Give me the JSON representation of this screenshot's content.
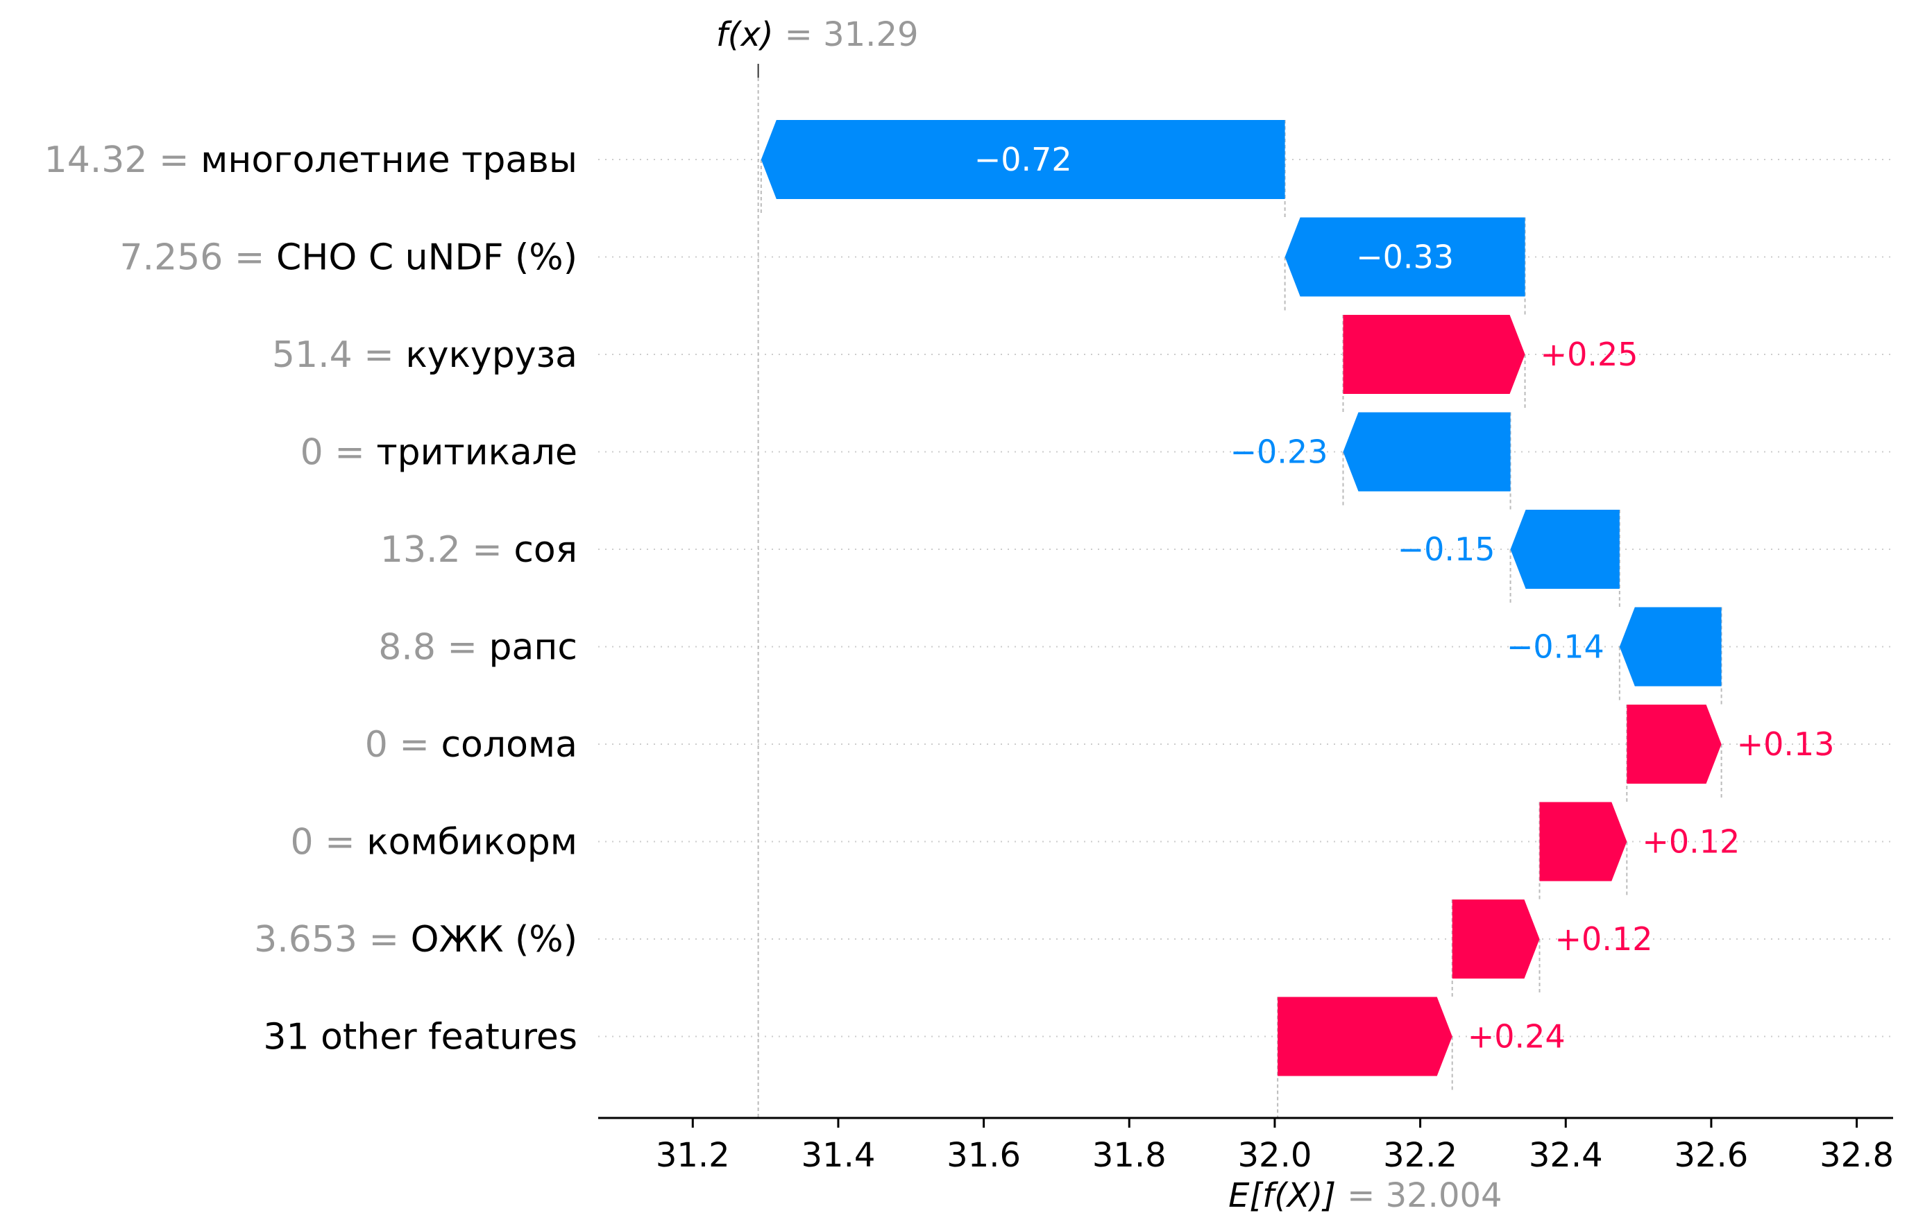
{
  "chart_data": {
    "type": "waterfall",
    "fx_label": "f(x)",
    "fx_value": "= 31.29",
    "base_label": "E[f(X)]",
    "base_value": "= 32.004",
    "base": 32.004,
    "final": 31.29,
    "xlim": [
      31.07,
      32.85
    ],
    "x_ticks": [
      31.2,
      31.4,
      31.6,
      31.8,
      32.0,
      32.2,
      32.4,
      32.6,
      32.8
    ],
    "x_tick_labels": [
      "31.2",
      "31.4",
      "31.6",
      "31.8",
      "32.0",
      "32.2",
      "32.4",
      "32.6",
      "32.8"
    ],
    "features": [
      {
        "value": "14.32 =",
        "name": "многолетние травы",
        "shap": -0.72,
        "label": "−0.72"
      },
      {
        "value": "7.256 =",
        "name": "CHO C uNDF (%)",
        "shap": -0.33,
        "label": "−0.33"
      },
      {
        "value": "51.4 =",
        "name": "кукуруза",
        "shap": 0.25,
        "label": "+0.25"
      },
      {
        "value": "0 =",
        "name": "тритикале",
        "shap": -0.23,
        "label": "−0.23"
      },
      {
        "value": "13.2 =",
        "name": "соя",
        "shap": -0.15,
        "label": "−0.15"
      },
      {
        "value": "8.8 =",
        "name": "рапс",
        "shap": -0.14,
        "label": "−0.14"
      },
      {
        "value": "0 =",
        "name": "солома",
        "shap": 0.13,
        "label": "+0.13"
      },
      {
        "value": "0 =",
        "name": "комбикорм",
        "shap": 0.12,
        "label": "+0.12"
      },
      {
        "value": "3.653 =",
        "name": "ОЖК (%)",
        "shap": 0.12,
        "label": "+0.12"
      },
      {
        "value": "",
        "name": "31 other features",
        "shap": 0.24,
        "label": "+0.24"
      }
    ],
    "colors": {
      "positive": "#ff0051",
      "negative": "#008bfb",
      "value_text": "#999999",
      "label_text": "#000000"
    }
  }
}
